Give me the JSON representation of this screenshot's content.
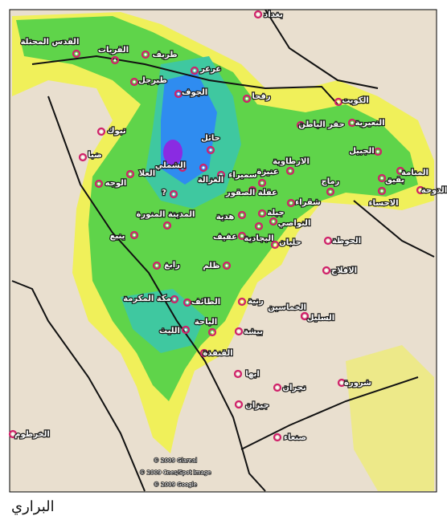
{
  "map": {
    "cities": [
      "بغداد",
      "القدس المحتلة",
      "القريات",
      "طريف",
      "طبرجل",
      "عرعر",
      "الجوف",
      "رفحا",
      "الكويت",
      "حفر الباطن",
      "النعيرية",
      "تبوك",
      "حائل",
      "ضبا",
      "الجبيل",
      "الشملي",
      "العلا",
      "الغزالة",
      "سميراء",
      "عنيزة",
      "الارطاوية",
      "عقلة الصقور",
      "الوجه",
      "رماح",
      "المنامة",
      "بقيق",
      "الاحساء",
      "الدوحة",
      "?",
      "شقراء",
      "المدينة المنورة",
      "هدية",
      "جبلة",
      "النواصي",
      "عفيف",
      "البجادية",
      "حلبان",
      "ينبع",
      "الحوطة",
      "رابغ",
      "ظلم",
      "الافلاج",
      "مكة المكرمة",
      "الطائف",
      "رنية",
      "الخماسين",
      "السليل",
      "الباحة",
      "الليث",
      "بيشة",
      "القنفذة",
      "ابها",
      "نجران",
      "شرورة",
      "جيزان",
      "صنعاء",
      "الخرطوم"
    ],
    "credits": [
      "© 2009 Glareal",
      "© 2009 Cnes/Spot Image",
      "© 2009 Google"
    ]
  },
  "footer": {
    "author": "البراري"
  }
}
